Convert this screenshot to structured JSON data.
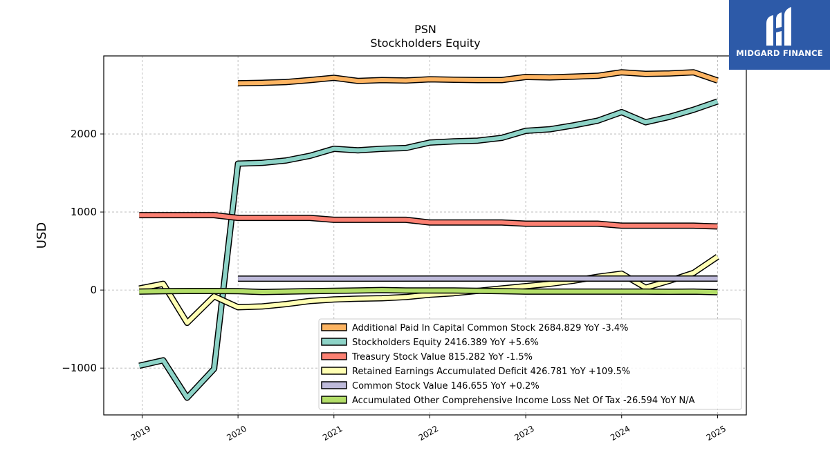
{
  "chart_data": {
    "type": "line",
    "title": "PSN",
    "subtitle": "Stockholders  Equity",
    "ylabel": "USD",
    "xlabel": "",
    "x_ticks": [
      "2019",
      "2020",
      "2021",
      "2022",
      "2023",
      "2024",
      "2025"
    ],
    "y_ticks": [
      -1000,
      0,
      1000,
      2000
    ],
    "xlim": [
      2018.6,
      2025.3
    ],
    "ylim": [
      -1600,
      3000
    ],
    "grid": true,
    "legend_position": "lower-right",
    "series": [
      {
        "name": "Additional Paid In Capital Common Stock",
        "legend": "Additional Paid In Capital Common Stock  2684.829 YoY -3.4%",
        "color": "#fdb462",
        "x": [
          2020.0,
          2020.25,
          2020.5,
          2020.75,
          2021.0,
          2021.25,
          2021.5,
          2021.75,
          2022.0,
          2022.25,
          2022.5,
          2022.75,
          2023.0,
          2023.25,
          2023.5,
          2023.75,
          2024.0,
          2024.25,
          2024.5,
          2024.75,
          2025.0
        ],
        "y": [
          2650,
          2655,
          2665,
          2690,
          2720,
          2680,
          2690,
          2685,
          2700,
          2695,
          2690,
          2690,
          2730,
          2725,
          2735,
          2745,
          2790,
          2770,
          2775,
          2790,
          2685
        ]
      },
      {
        "name": "Stockholders Equity",
        "legend": "Stockholders Equity  2416.389 YoY +5.6%",
        "color": "#8dd3c7",
        "x": [
          2018.97,
          2019.22,
          2019.47,
          2019.75,
          2020.0,
          2020.25,
          2020.5,
          2020.75,
          2021.0,
          2021.25,
          2021.5,
          2021.75,
          2022.0,
          2022.25,
          2022.5,
          2022.75,
          2023.0,
          2023.25,
          2023.5,
          2023.75,
          2024.0,
          2024.25,
          2024.5,
          2024.75,
          2025.0
        ],
        "y": [
          -970,
          -900,
          -1380,
          -1010,
          1620,
          1630,
          1660,
          1720,
          1810,
          1790,
          1810,
          1820,
          1890,
          1905,
          1915,
          1950,
          2040,
          2060,
          2110,
          2170,
          2280,
          2150,
          2220,
          2310,
          2416
        ]
      },
      {
        "name": "Treasury Stock Value",
        "legend": "Treasury Stock Value  815.282 YoY -1.5%",
        "color": "#fb8072",
        "x": [
          2018.97,
          2019.25,
          2019.5,
          2019.75,
          2020.0,
          2020.25,
          2020.5,
          2020.75,
          2021.0,
          2021.25,
          2021.5,
          2021.75,
          2022.0,
          2022.25,
          2022.5,
          2022.75,
          2023.0,
          2023.25,
          2023.5,
          2023.75,
          2024.0,
          2024.25,
          2024.5,
          2024.75,
          2025.0
        ],
        "y": [
          960,
          960,
          960,
          960,
          925,
          925,
          925,
          925,
          900,
          900,
          900,
          900,
          865,
          865,
          865,
          865,
          850,
          850,
          850,
          850,
          825,
          825,
          825,
          825,
          815
        ]
      },
      {
        "name": "Retained Earnings Accumulated Deficit",
        "legend": "Retained Earnings Accumulated Deficit  426.781 YoY +109.5%",
        "color": "#ffffb3",
        "x": [
          2018.97,
          2019.22,
          2019.47,
          2019.75,
          2020.0,
          2020.25,
          2020.5,
          2020.75,
          2021.0,
          2021.25,
          2021.5,
          2021.75,
          2022.0,
          2022.25,
          2022.5,
          2022.75,
          2023.0,
          2023.25,
          2023.5,
          2023.75,
          2024.0,
          2024.25,
          2024.5,
          2024.75,
          2025.0
        ],
        "y": [
          20,
          80,
          -420,
          -80,
          -220,
          -210,
          -180,
          -140,
          -120,
          -110,
          -105,
          -90,
          -60,
          -40,
          -10,
          20,
          50,
          80,
          120,
          170,
          210,
          30,
          120,
          220,
          427
        ]
      },
      {
        "name": "Common Stock Value",
        "legend": "Common Stock Value  146.655 YoY +0.2%",
        "color": "#bebada",
        "x": [
          2020.0,
          2025.0
        ],
        "y": [
          146,
          147
        ]
      },
      {
        "name": "Accumulated Other Comprehensive Income Loss Net Of Tax",
        "legend": "Accumulated Other Comprehensive Income Loss Net Of Tax  -26.594 YoY N/A",
        "color": "#b3de69",
        "x": [
          2018.97,
          2019.25,
          2019.5,
          2019.75,
          2020.0,
          2020.25,
          2020.5,
          2020.75,
          2021.0,
          2021.25,
          2021.5,
          2021.75,
          2022.0,
          2022.25,
          2022.5,
          2022.75,
          2023.0,
          2023.25,
          2023.5,
          2023.75,
          2024.0,
          2024.25,
          2024.5,
          2024.75,
          2025.0
        ],
        "y": [
          -20,
          -15,
          -12,
          -12,
          -15,
          -25,
          -20,
          -15,
          -10,
          -5,
          0,
          -5,
          -5,
          -5,
          -10,
          -15,
          -20,
          -20,
          -20,
          -20,
          -20,
          -20,
          -22,
          -20,
          -27
        ]
      }
    ]
  },
  "logo": {
    "text": "MIDGARD FINANCE",
    "color": "#2d5aa8"
  }
}
